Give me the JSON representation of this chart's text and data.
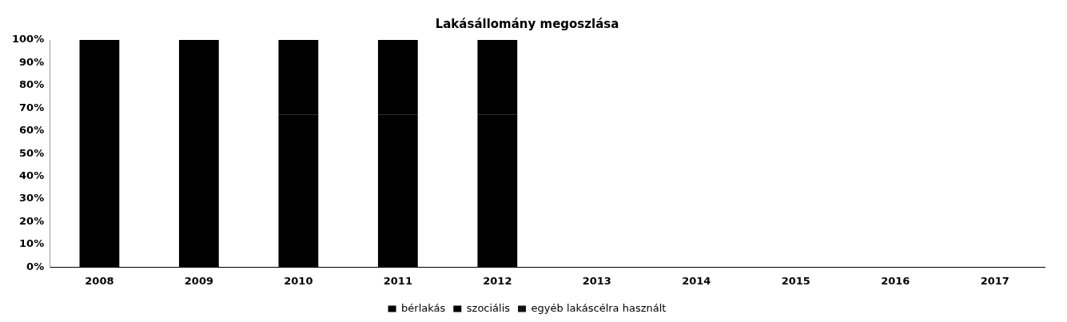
{
  "chart_data": {
    "type": "bar",
    "title": "Lakásállomány megoszlása",
    "stacked": true,
    "categories": [
      "2008",
      "2009",
      "2010",
      "2011",
      "2012",
      "2013",
      "2014",
      "2015",
      "2016",
      "2017"
    ],
    "series": [
      {
        "name": "bérlakás",
        "color": "#000000",
        "values": [
          100,
          100,
          67,
          67,
          67,
          null,
          null,
          null,
          null,
          null
        ]
      },
      {
        "name": "szociális",
        "color": "#000000",
        "values": [
          0,
          0,
          33,
          33,
          33,
          null,
          null,
          null,
          null,
          null
        ]
      },
      {
        "name": "egyéb lakáscélra használt",
        "color": "#111111",
        "values": [
          0,
          0,
          0,
          0,
          0,
          null,
          null,
          null,
          null,
          null
        ]
      }
    ],
    "ylim": [
      0,
      100
    ],
    "yticks": [
      {
        "value": 0,
        "label": "0%"
      },
      {
        "value": 10,
        "label": "10%"
      },
      {
        "value": 20,
        "label": "20%"
      },
      {
        "value": 30,
        "label": "30%"
      },
      {
        "value": 40,
        "label": "40%"
      },
      {
        "value": 50,
        "label": "50%"
      },
      {
        "value": 60,
        "label": "60%"
      },
      {
        "value": 70,
        "label": "70%"
      },
      {
        "value": 80,
        "label": "80%"
      },
      {
        "value": 90,
        "label": "90%"
      },
      {
        "value": 100,
        "label": "100%"
      }
    ],
    "grid": false,
    "legend": "bottom"
  }
}
